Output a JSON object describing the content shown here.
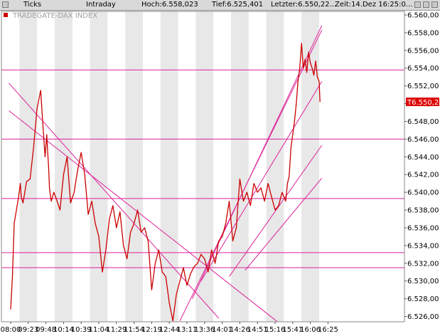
{
  "topbar": {
    "mode": "Ticks",
    "period": "Intraday",
    "high": "Hoch:6.558,023",
    "low": "Tief:6.525,401",
    "last": "Letzter:6.550,22...",
    "time": "Zeit:14.Dez 16:25:0..."
  },
  "chart_data": {
    "type": "line",
    "title": "TRADEGATE-DAX INDEX",
    "last_value_label": "T6.550,2",
    "ylim": [
      6525.4,
      6560.4
    ],
    "y_ticks": [
      "6.526,00",
      "6.528,00",
      "6.530,00",
      "6.532,00",
      "6.534,00",
      "6.536,00",
      "6.538,00",
      "6.540,00",
      "6.542,00",
      "6.544,00",
      "6.546,00",
      "6.548,00",
      "6.550,00",
      "6.552,00",
      "6.554,00",
      "6.556,00",
      "6.558,00",
      "6.560,00"
    ],
    "x_ticks": [
      "08:00",
      "09:23",
      "09:48",
      "10:14",
      "10:39",
      "11:04",
      "11:29",
      "11:54",
      "12:19",
      "12:44",
      "13:11",
      "13:36",
      "14:01",
      "14:26",
      "14:51",
      "15:16",
      "15:41",
      "16:06",
      "16:25"
    ],
    "grid": true,
    "colors": {
      "series": "#cc0000",
      "trendline": "#dd2299",
      "grid_band": "#e8e8e8",
      "last_label_bg": "#dd0000"
    },
    "series": [
      {
        "x": [
          0,
          0.1,
          0.2,
          0.45,
          0.55,
          0.6,
          0.7,
          0.9,
          1.1,
          1.3,
          1.5,
          1.7,
          1.8,
          1.95,
          2.05,
          2.1,
          2.15,
          2.2,
          2.3,
          2.45,
          2.6,
          2.8,
          3.0,
          3.2,
          3.4,
          3.6,
          3.8,
          4.0,
          4.2,
          4.4,
          4.6,
          4.8,
          5.0,
          5.2,
          5.4,
          5.6,
          5.8,
          6.0,
          6.2,
          6.4,
          6.6,
          6.8,
          7.0,
          7.2,
          7.4,
          7.6,
          7.8,
          8.0,
          8.2,
          8.4,
          8.6,
          8.8,
          9.0,
          9.2,
          9.4,
          9.6,
          9.8,
          10.0,
          10.2,
          10.4,
          10.6,
          10.8,
          11.0,
          11.2,
          11.4,
          11.6,
          11.8,
          12.0,
          12.2,
          12.4,
          12.6,
          12.8,
          13.0,
          13.2,
          13.4,
          13.6,
          13.8,
          14.0,
          14.2,
          14.4,
          14.6,
          14.8,
          15.0,
          15.2,
          15.4,
          15.6,
          15.7,
          15.8,
          15.9,
          16.0,
          16.1,
          16.2,
          16.3,
          16.4,
          16.5,
          16.6,
          16.7,
          16.8,
          16.9,
          17.0,
          17.1,
          17.2,
          17.3,
          17.4,
          17.5,
          17.55
        ],
        "y": [
          6526.8,
          6530.5,
          6536.5,
          6539.5,
          6541.0,
          6539.5,
          6538.8,
          6541.2,
          6541.5,
          6545.0,
          6549.5,
          6551.5,
          6548.5,
          6544.0,
          6546.5,
          6544.5,
          6543.0,
          6540.5,
          6539.0,
          6540.0,
          6539.2,
          6538.0,
          6542.0,
          6544.0,
          6538.8,
          6540.0,
          6542.5,
          6544.5,
          6542.0,
          6537.5,
          6539.0,
          6536.5,
          6535.0,
          6531.0,
          6533.5,
          6537.0,
          6538.5,
          6536.0,
          6537.8,
          6534.0,
          6532.5,
          6535.5,
          6536.5,
          6538.0,
          6535.5,
          6536.0,
          6534.5,
          6529.0,
          6532.0,
          6533.5,
          6531.0,
          6530.5,
          6527.5,
          6525.5,
          6528.5,
          6530.0,
          6531.5,
          6529.5,
          6530.8,
          6531.6,
          6532.0,
          6533.0,
          6532.5,
          6531.0,
          6533.5,
          6532.0,
          6534.5,
          6535.0,
          6536.5,
          6539.0,
          6534.5,
          6536.0,
          6541.5,
          6539.0,
          6540.0,
          6538.5,
          6541.0,
          6540.0,
          6540.5,
          6539.0,
          6541.0,
          6539.5,
          6538.0,
          6538.5,
          6540.0,
          6539.0,
          6541.0,
          6541.8,
          6545.0,
          6546.5,
          6548.0,
          6550.0,
          6552.5,
          6554.0,
          6556.8,
          6554.0,
          6555.0,
          6553.5,
          6555.8,
          6554.6,
          6554.0,
          6553.2,
          6554.8,
          6553.0,
          6552.5,
          6550.2
        ]
      }
    ],
    "horizontal_lines": [
      6553.8,
      6546.0,
      6539.3,
      6533.2,
      6531.5
    ],
    "trend_lines": [
      [
        [
          -0.1,
          6552.3
        ],
        [
          11.8,
          6525.8
        ]
      ],
      [
        [
          -0.1,
          6549.2
        ],
        [
          15.2,
          6525.3
        ]
      ],
      [
        [
          9.6,
          6525.5
        ],
        [
          17.65,
          6558.3
        ]
      ],
      [
        [
          10.3,
          6528.0
        ],
        [
          17.65,
          6558.8
        ]
      ],
      [
        [
          10.8,
          6530.0
        ],
        [
          17.65,
          6552.5
        ]
      ],
      [
        [
          12.4,
          6530.5
        ],
        [
          17.65,
          6545.3
        ]
      ],
      [
        [
          13.3,
          6531.2
        ],
        [
          17.65,
          6541.6
        ]
      ]
    ]
  }
}
